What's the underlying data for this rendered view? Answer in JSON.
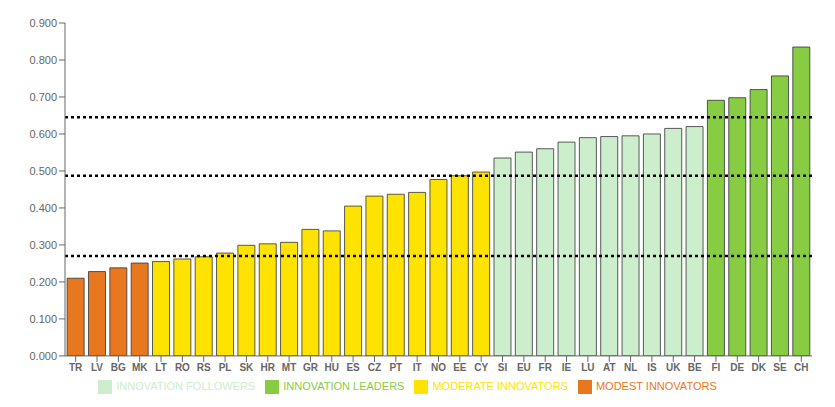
{
  "chart_data": {
    "type": "bar",
    "categories": [
      "TR",
      "LV",
      "BG",
      "MK",
      "LT",
      "RO",
      "RS",
      "PL",
      "SK",
      "HR",
      "MT",
      "GR",
      "HU",
      "ES",
      "CZ",
      "PT",
      "IT",
      "NO",
      "EE",
      "CY",
      "SI",
      "EU",
      "FR",
      "IE",
      "LU",
      "AT",
      "NL",
      "IS",
      "UK",
      "BE",
      "FI",
      "DE",
      "DK",
      "SE",
      "CH"
    ],
    "series": [
      {
        "name": "MODEST INNOVATORS",
        "color": "#E87820",
        "values": [
          0.21,
          0.228,
          0.238,
          0.251,
          null,
          null,
          null,
          null,
          null,
          null,
          null,
          null,
          null,
          null,
          null,
          null,
          null,
          null,
          null,
          null,
          null,
          null,
          null,
          null,
          null,
          null,
          null,
          null,
          null,
          null,
          null,
          null,
          null,
          null,
          null
        ]
      },
      {
        "name": "MODERATE INNOVATORS",
        "color": "#FFE300",
        "values": [
          null,
          null,
          null,
          null,
          0.255,
          0.262,
          0.268,
          0.278,
          0.299,
          0.303,
          0.307,
          0.342,
          0.338,
          0.405,
          0.432,
          0.437,
          0.442,
          0.477,
          0.487,
          0.497,
          null,
          null,
          null,
          null,
          null,
          null,
          null,
          null,
          null,
          null,
          null,
          null,
          null,
          null,
          null
        ]
      },
      {
        "name": "INNOVATION FOLLOWERS",
        "color": "#CCEECC",
        "values": [
          null,
          null,
          null,
          null,
          null,
          null,
          null,
          null,
          null,
          null,
          null,
          null,
          null,
          null,
          null,
          null,
          null,
          null,
          null,
          null,
          0.535,
          0.551,
          0.56,
          0.578,
          0.59,
          0.593,
          0.595,
          0.6,
          0.615,
          0.62,
          null,
          null,
          null,
          null,
          null
        ]
      },
      {
        "name": "INNOVATION LEADERS",
        "color": "#88CC44",
        "values": [
          null,
          null,
          null,
          null,
          null,
          null,
          null,
          null,
          null,
          null,
          null,
          null,
          null,
          null,
          null,
          null,
          null,
          null,
          null,
          null,
          null,
          null,
          null,
          null,
          null,
          null,
          null,
          null,
          null,
          null,
          0.691,
          0.698,
          0.72,
          0.757,
          0.835
        ]
      }
    ],
    "hlines": [
      0.27,
      0.487,
      0.645
    ],
    "ylim": [
      0.0,
      0.9
    ],
    "yticks": [
      {
        "value": 0.0,
        "label": "0.000"
      },
      {
        "value": 0.1,
        "label": "0.100"
      },
      {
        "value": 0.2,
        "label": "0.200"
      },
      {
        "value": 0.3,
        "label": "0.300"
      },
      {
        "value": 0.4,
        "label": "0.400"
      },
      {
        "value": 0.5,
        "label": "0.500"
      },
      {
        "value": 0.6,
        "label": "0.600"
      },
      {
        "value": 0.7,
        "label": "0.700"
      },
      {
        "value": 0.8,
        "label": "0.800"
      },
      {
        "value": 0.9,
        "label": "0.900"
      }
    ],
    "grid": false,
    "legend": "bottom"
  }
}
